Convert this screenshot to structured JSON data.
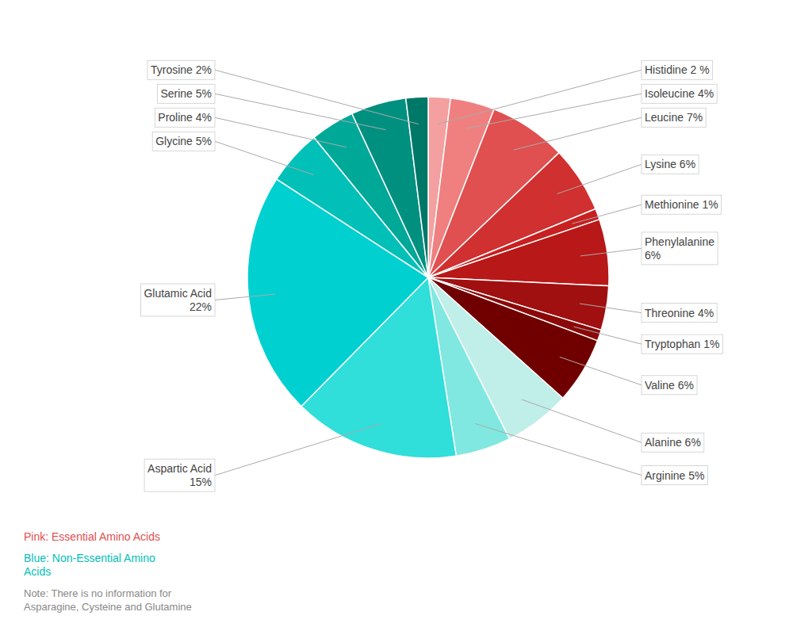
{
  "chart_data": {
    "type": "pie",
    "categories": [
      "Histidine 2 %",
      "Isoleucine 4%",
      "Leucine 7%",
      "Lysine 6%",
      "Methionine 1%",
      "Phenylalanine\n6%",
      "Threonine 4%",
      "Tryptophan 1%",
      "Valine 6%",
      "Alanine 6%",
      "Arginine 5%",
      "Aspartic Acid\n15%",
      "Glutamic Acid\n22%",
      "Glycine 5%",
      "Proline 4%",
      "Serine 5%",
      "Tyrosine 2%"
    ],
    "values": [
      2,
      4,
      7,
      6,
      1,
      6,
      4,
      1,
      6,
      6,
      5,
      15,
      22,
      5,
      4,
      5,
      2
    ],
    "colors": [
      "#F4A0A0",
      "#F08080",
      "#E05050",
      "#D03030",
      "#C82020",
      "#B81818",
      "#A01010",
      "#8B0808",
      "#700000",
      "#C0EEE8",
      "#80E8E0",
      "#30DEDA",
      "#00D0D0",
      "#00C0B8",
      "#00A898",
      "#009080",
      "#007868"
    ],
    "annotations": [
      {
        "text": "Pink: Essential Amino Acids",
        "color": "#E05050"
      },
      {
        "text": "Blue: Non-Essential Amino\nAcids",
        "color": "#00C0B8"
      },
      {
        "text": "Note: There is no information for\nAsparagine, Cysteine and Glutamine",
        "color": "#888888"
      }
    ]
  }
}
